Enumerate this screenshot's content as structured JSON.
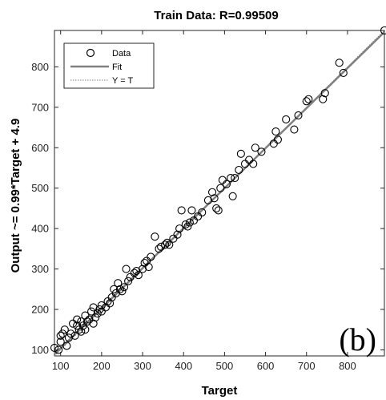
{
  "chart_data": {
    "type": "scatter",
    "title": "Train Data: R=0.99509",
    "xlabel": "Target",
    "ylabel": "Output ~= 0.99*Target + 4.9",
    "xlim": [
      85,
      890
    ],
    "ylim": [
      85,
      890
    ],
    "xticks": [
      100,
      200,
      300,
      400,
      500,
      600,
      700,
      800
    ],
    "yticks": [
      100,
      200,
      300,
      400,
      500,
      600,
      700,
      800
    ],
    "grid": false,
    "legend_position": "top-left",
    "legend": [
      "Data",
      "Fit",
      "Y = T"
    ],
    "fit": {
      "slope": 0.99,
      "intercept": 4.9
    },
    "panel_label": "(b)",
    "points": [
      [
        85,
        105
      ],
      [
        95,
        100
      ],
      [
        100,
        120
      ],
      [
        100,
        135
      ],
      [
        105,
        140
      ],
      [
        110,
        150
      ],
      [
        115,
        110
      ],
      [
        120,
        130
      ],
      [
        125,
        140
      ],
      [
        130,
        165
      ],
      [
        135,
        135
      ],
      [
        140,
        160
      ],
      [
        140,
        175
      ],
      [
        145,
        150
      ],
      [
        150,
        145
      ],
      [
        150,
        170
      ],
      [
        155,
        160
      ],
      [
        160,
        185
      ],
      [
        160,
        150
      ],
      [
        165,
        170
      ],
      [
        170,
        175
      ],
      [
        175,
        195
      ],
      [
        180,
        165
      ],
      [
        180,
        205
      ],
      [
        185,
        180
      ],
      [
        190,
        190
      ],
      [
        195,
        200
      ],
      [
        200,
        210
      ],
      [
        200,
        195
      ],
      [
        210,
        205
      ],
      [
        215,
        220
      ],
      [
        220,
        215
      ],
      [
        225,
        230
      ],
      [
        230,
        250
      ],
      [
        235,
        240
      ],
      [
        240,
        265
      ],
      [
        245,
        250
      ],
      [
        250,
        245
      ],
      [
        255,
        255
      ],
      [
        260,
        300
      ],
      [
        265,
        270
      ],
      [
        270,
        280
      ],
      [
        280,
        290
      ],
      [
        285,
        295
      ],
      [
        290,
        285
      ],
      [
        300,
        300
      ],
      [
        305,
        315
      ],
      [
        310,
        320
      ],
      [
        315,
        305
      ],
      [
        320,
        330
      ],
      [
        330,
        380
      ],
      [
        340,
        350
      ],
      [
        345,
        355
      ],
      [
        355,
        360
      ],
      [
        360,
        365
      ],
      [
        365,
        360
      ],
      [
        375,
        375
      ],
      [
        385,
        385
      ],
      [
        390,
        400
      ],
      [
        395,
        445
      ],
      [
        405,
        410
      ],
      [
        410,
        405
      ],
      [
        415,
        415
      ],
      [
        420,
        445
      ],
      [
        425,
        420
      ],
      [
        435,
        430
      ],
      [
        445,
        440
      ],
      [
        460,
        470
      ],
      [
        470,
        490
      ],
      [
        475,
        475
      ],
      [
        480,
        450
      ],
      [
        485,
        445
      ],
      [
        490,
        500
      ],
      [
        495,
        520
      ],
      [
        505,
        510
      ],
      [
        515,
        525
      ],
      [
        520,
        480
      ],
      [
        525,
        525
      ],
      [
        535,
        545
      ],
      [
        540,
        585
      ],
      [
        550,
        560
      ],
      [
        560,
        570
      ],
      [
        570,
        560
      ],
      [
        575,
        600
      ],
      [
        590,
        590
      ],
      [
        620,
        610
      ],
      [
        625,
        640
      ],
      [
        630,
        620
      ],
      [
        650,
        670
      ],
      [
        670,
        645
      ],
      [
        680,
        680
      ],
      [
        700,
        715
      ],
      [
        705,
        720
      ],
      [
        740,
        720
      ],
      [
        745,
        735
      ],
      [
        780,
        810
      ],
      [
        790,
        785
      ],
      [
        890,
        890
      ]
    ]
  }
}
